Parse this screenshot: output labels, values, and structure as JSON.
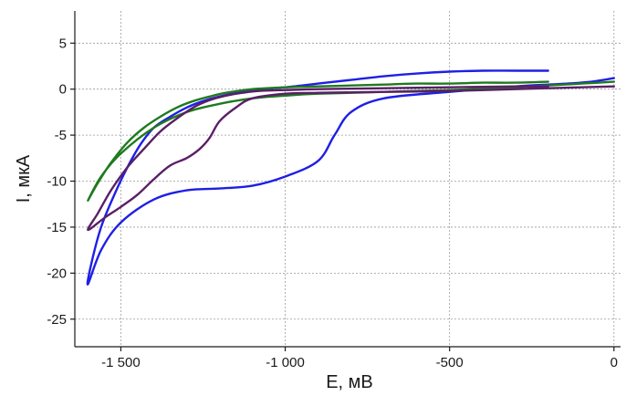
{
  "chart_data": {
    "type": "line",
    "xlabel": "E, мВ",
    "ylabel": "I, мкА",
    "xlim": [
      -1640,
      20
    ],
    "ylim": [
      -28,
      8.5
    ],
    "x_ticks": [
      {
        "value": -1500,
        "label": "-1 500"
      },
      {
        "value": -1000,
        "label": "-1 000"
      },
      {
        "value": -500,
        "label": "-500"
      },
      {
        "value": 0,
        "label": "0"
      }
    ],
    "y_ticks": [
      {
        "value": 5,
        "label": "5"
      },
      {
        "value": 0,
        "label": "0"
      },
      {
        "value": -5,
        "label": "-5"
      },
      {
        "value": -10,
        "label": "-10"
      },
      {
        "value": -15,
        "label": "-15"
      },
      {
        "value": -20,
        "label": "-20"
      },
      {
        "value": -25,
        "label": "-25"
      }
    ],
    "grid": true,
    "series": [
      {
        "color": "#1f1fe6",
        "x": [
          0,
          -50,
          -100,
          -200,
          -300,
          -500,
          -700,
          -800,
          -850,
          -900,
          -1000,
          -1100,
          -1200,
          -1300,
          -1400,
          -1500,
          -1560,
          -1600,
          -1590,
          -1560,
          -1520,
          -1480,
          -1440,
          -1400,
          -1350,
          -1300,
          -1250,
          -1200,
          -1100,
          -1000,
          -900,
          -800,
          -700,
          -600,
          -500,
          -400,
          -300,
          -200
        ],
        "y": [
          1.2,
          0.9,
          0.7,
          0.5,
          0.3,
          -0.3,
          -1.0,
          -2.5,
          -5.0,
          -7.8,
          -9.5,
          -10.5,
          -10.8,
          -11.0,
          -12.0,
          -14.5,
          -17.5,
          -21.2,
          -19.0,
          -15.0,
          -11.5,
          -8.5,
          -6.0,
          -4.2,
          -3.0,
          -2.0,
          -1.3,
          -0.8,
          -0.1,
          0.2,
          0.6,
          1.0,
          1.4,
          1.7,
          1.9,
          2.0,
          2.0,
          2.0
        ]
      },
      {
        "color": "#1f7a1f",
        "x": [
          0,
          -100,
          -200,
          -300,
          -500,
          -700,
          -900,
          -1000,
          -1100,
          -1200,
          -1300,
          -1400,
          -1500,
          -1560,
          -1600,
          -1570,
          -1530,
          -1480,
          -1430,
          -1380,
          -1330,
          -1280,
          -1230,
          -1180,
          -1100,
          -1000,
          -900,
          -800,
          -700,
          -600,
          -500,
          -400,
          -300,
          -200
        ],
        "y": [
          0.8,
          0.6,
          0.4,
          0.2,
          -0.1,
          -0.3,
          -0.5,
          -0.7,
          -1.0,
          -1.6,
          -2.5,
          -4.2,
          -7.0,
          -9.5,
          -12.1,
          -10.2,
          -8.0,
          -5.8,
          -4.2,
          -3.0,
          -2.0,
          -1.3,
          -0.8,
          -0.4,
          0.0,
          0.2,
          0.3,
          0.4,
          0.5,
          0.6,
          0.6,
          0.7,
          0.7,
          0.8
        ]
      },
      {
        "color": "#5a1f66",
        "x": [
          0,
          -100,
          -200,
          -300,
          -500,
          -700,
          -900,
          -1000,
          -1100,
          -1150,
          -1200,
          -1230,
          -1260,
          -1300,
          -1350,
          -1400,
          -1450,
          -1500,
          -1550,
          -1600,
          -1570,
          -1530,
          -1480,
          -1430,
          -1380,
          -1330,
          -1280,
          -1230,
          -1180,
          -1130,
          -1080,
          -1000,
          -900,
          -700,
          -500,
          -300,
          -200
        ],
        "y": [
          0.3,
          0.2,
          0.1,
          0.0,
          -0.2,
          -0.3,
          -0.4,
          -0.5,
          -1.0,
          -2.0,
          -3.5,
          -5.3,
          -6.5,
          -7.5,
          -8.3,
          -9.8,
          -11.5,
          -12.8,
          -14.0,
          -15.3,
          -13.5,
          -11.0,
          -8.5,
          -6.5,
          -4.6,
          -3.2,
          -2.0,
          -1.2,
          -0.7,
          -0.4,
          -0.2,
          -0.1,
          0.0,
          0.1,
          0.2,
          0.3,
          0.3
        ]
      }
    ]
  }
}
